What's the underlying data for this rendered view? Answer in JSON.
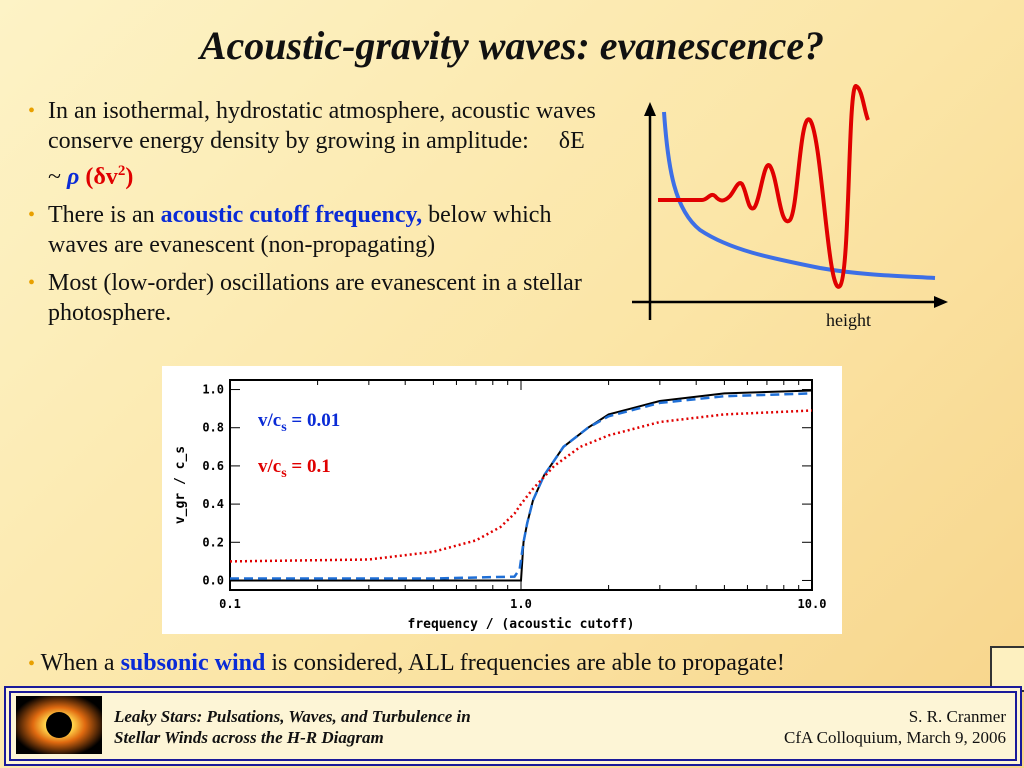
{
  "slide": {
    "title": "Acoustic-gravity waves:  evanescence?",
    "bullets": [
      {
        "pre": "In an isothermal, hydrostatic atmosphere, acoustic waves conserve energy density by growing in amplitude:",
        "eq_a": "δE ~ ",
        "eq_rho": "ρ",
        "eq_b": " (δv",
        "eq_sup": "2",
        "eq_c": ")"
      },
      {
        "pre": "There is an ",
        "highlight": "acoustic cutoff frequency,",
        "post": " below which waves are evanescent (non-propagating)"
      },
      {
        "text": "Most (low-order) oscillations are evanescent in a stellar photosphere."
      }
    ],
    "bottom_bullet": {
      "pre": "When a ",
      "highlight": "subsonic wind",
      "post": " is considered, ALL frequencies are able to propagate!"
    },
    "sketch_xlabel": "height"
  },
  "chart_data": {
    "type": "line",
    "xscale": "log",
    "xlim": [
      0.1,
      10.0
    ],
    "ylim": [
      -0.05,
      1.05
    ],
    "xticks": [
      "0.1",
      "1.0",
      "10.0"
    ],
    "yticks": [
      "0.0",
      "0.2",
      "0.4",
      "0.6",
      "0.8",
      "1.0"
    ],
    "xlabel": "frequency / (acoustic cutoff)",
    "ylabel": "v_gr / c_s",
    "series": [
      {
        "name": "",
        "style": "solid",
        "color": "#000000",
        "x": [
          0.1,
          0.5,
          0.99,
          1.0,
          1.02,
          1.05,
          1.1,
          1.2,
          1.4,
          1.7,
          2.0,
          3.0,
          5.0,
          10.0
        ],
        "y": [
          0.0,
          0.0,
          0.0,
          0.0,
          0.2,
          0.3,
          0.42,
          0.55,
          0.7,
          0.8,
          0.87,
          0.94,
          0.98,
          0.995
        ]
      },
      {
        "name": "v/c_s = 0.01",
        "style": "dashed",
        "color": "#1f6fd6",
        "x": [
          0.1,
          0.5,
          0.95,
          0.99,
          1.02,
          1.05,
          1.1,
          1.2,
          1.4,
          1.7,
          2.0,
          3.0,
          5.0,
          10.0
        ],
        "y": [
          0.01,
          0.01,
          0.02,
          0.06,
          0.2,
          0.3,
          0.42,
          0.55,
          0.7,
          0.8,
          0.86,
          0.93,
          0.965,
          0.98
        ]
      },
      {
        "name": "v/c_s = 0.1",
        "style": "dotted",
        "color": "#e00000",
        "x": [
          0.1,
          0.3,
          0.5,
          0.7,
          0.85,
          0.95,
          1.0,
          1.1,
          1.3,
          1.6,
          2.0,
          3.0,
          5.0,
          10.0
        ],
        "y": [
          0.1,
          0.11,
          0.15,
          0.21,
          0.28,
          0.35,
          0.4,
          0.48,
          0.6,
          0.7,
          0.76,
          0.83,
          0.87,
          0.89
        ]
      }
    ],
    "legend": [
      {
        "label_a": "v/c",
        "label_sub": "s",
        "label_b": " = 0.01",
        "color": "#0a2bd6"
      },
      {
        "label_a": "v/c",
        "label_sub": "s",
        "label_b": " = 0.1",
        "color": "#e00000"
      }
    ]
  },
  "footer": {
    "left_line1": "Leaky Stars:  Pulsations, Waves, and Turbulence in",
    "left_line2": "Stellar Winds across the H-R Diagram",
    "right_line1": "S. R. Cranmer",
    "right_line2": "CfA Colloquium,  March 9, 2006"
  }
}
